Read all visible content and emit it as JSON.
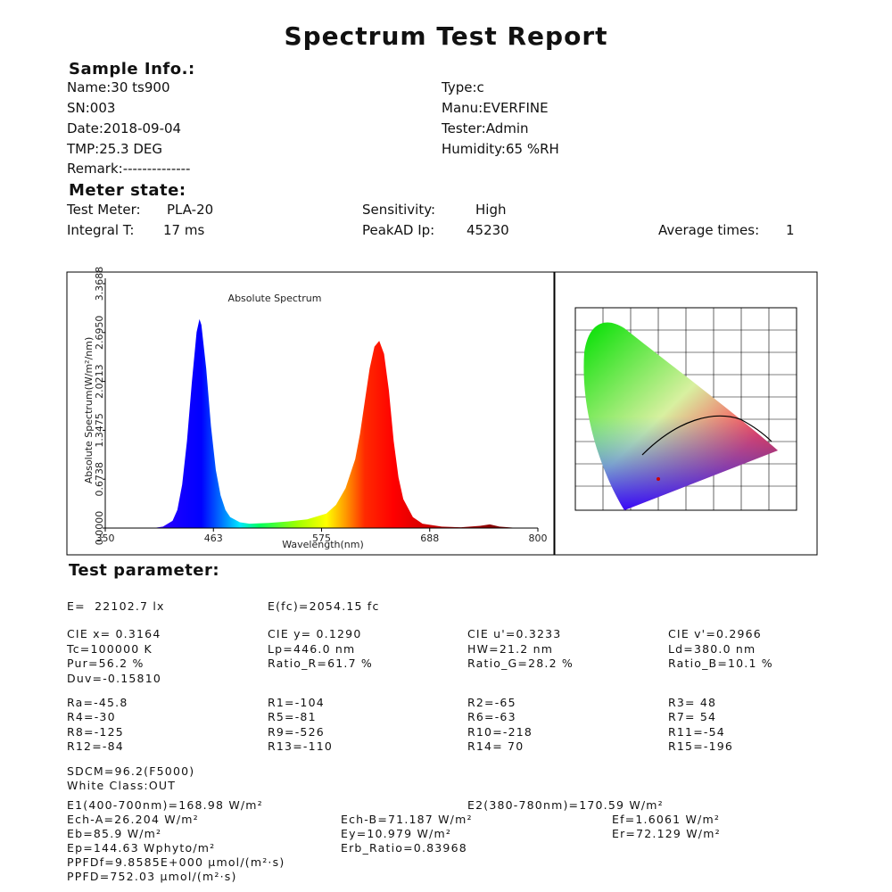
{
  "title": "Spectrum  Test Report",
  "sample_info": {
    "heading": "Sample Info.:",
    "fields": [
      "Name:30 ts900",
      "Type:c",
      "SN:003",
      "Manu:EVERFINE",
      "Date:2018-09-04",
      "Tester:Admin",
      "TMP:25.3 DEG",
      "Humidity:65 %RH",
      "Remark:--------------"
    ]
  },
  "meter_state": {
    "heading": "Meter state:",
    "items": [
      "Test Meter:",
      "PLA-20",
      "Sensitivity:",
      "High",
      "Integral T:",
      "17 ms",
      "PeakAD Ip:",
      "45230",
      "Average times:",
      "1"
    ]
  },
  "chart_data": {
    "type": "area",
    "title": "Absolute Spectrum",
    "x_label": "Wavelength(nm)",
    "y_label": "Absolute Spectrum(W/m²/nm)",
    "x": [
      400,
      410,
      420,
      425,
      430,
      435,
      440,
      445,
      448,
      450,
      455,
      460,
      465,
      470,
      475,
      480,
      490,
      500,
      520,
      540,
      560,
      580,
      590,
      600,
      610,
      615,
      620,
      625,
      630,
      635,
      640,
      645,
      650,
      655,
      660,
      670,
      680,
      700,
      720,
      740,
      750,
      760,
      780,
      800
    ],
    "values": [
      0,
      0.02,
      0.1,
      0.25,
      0.6,
      1.2,
      2.0,
      2.7,
      2.88,
      2.8,
      2.2,
      1.4,
      0.8,
      0.45,
      0.25,
      0.15,
      0.08,
      0.06,
      0.07,
      0.09,
      0.12,
      0.2,
      0.32,
      0.55,
      0.95,
      1.3,
      1.75,
      2.2,
      2.5,
      2.58,
      2.4,
      1.9,
      1.2,
      0.7,
      0.4,
      0.15,
      0.06,
      0.02,
      0.01,
      0.03,
      0.05,
      0.02,
      0,
      0
    ],
    "xlim": [
      350,
      800
    ],
    "xticks": [
      350,
      {
        "value": 462.5,
        "label": "463"
      },
      575,
      {
        "value": 687.5,
        "label": "688"
      },
      800
    ],
    "ylim": [
      0,
      3.3688
    ],
    "yticks": [
      {
        "value": 0,
        "label": "0.0000"
      },
      0.6738,
      1.3475,
      2.0213,
      {
        "value": 2.695,
        "label": "2.6950"
      },
      3.3688
    ]
  },
  "test_parameter": {
    "heading": "Test parameter:",
    "rows": [
      [
        "E=  22102.7 lx",
        "E(fc)=2054.15 fc"
      ],
      [
        "CIE x= 0.3164",
        "CIE y= 0.1290",
        "CIE u'=0.3233",
        "CIE v'=0.2966"
      ],
      [
        "Tc=100000 K",
        "Lp=446.0 nm",
        "HW=21.2 nm",
        "Ld=380.0 nm"
      ],
      [
        "Pur=56.2 %",
        "Ratio_R=61.7 %",
        "Ratio_G=28.2 %",
        "Ratio_B=10.1 %"
      ],
      [
        "Duv=-0.15810"
      ],
      [
        "Ra=-45.8",
        "R1=-104",
        "R2=-65",
        "R3= 48"
      ],
      [
        "R4=-30",
        "R5=-81",
        "R6=-63",
        "R7= 54"
      ],
      [
        "R8=-125",
        "R9=-526",
        "R10=-218",
        "R11=-54"
      ],
      [
        "R12=-84",
        "R13=-110",
        "R14= 70",
        "R15=-196"
      ],
      [
        "SDCM=96.2(F5000)"
      ],
      [
        "White Class:OUT"
      ],
      [
        "E1(400-700nm)=168.98 W/m²",
        "E2(380-780nm)=170.59 W/m²"
      ],
      [
        "Ech-A=26.204 W/m²",
        "Ech-B=71.187 W/m²",
        "Ef=1.6061 W/m²"
      ],
      [
        "Eb=85.9 W/m²",
        "Ey=10.979 W/m²",
        "Er=72.129 W/m²"
      ],
      [
        "Ep=144.63 Wphyto/m²",
        "Erb_Ratio=0.83968"
      ],
      [
        "PPFDf=9.8585E+000 μmol/(m²·s)"
      ],
      [
        "PPFD=752.03 μmol/(m²·s)"
      ]
    ]
  }
}
